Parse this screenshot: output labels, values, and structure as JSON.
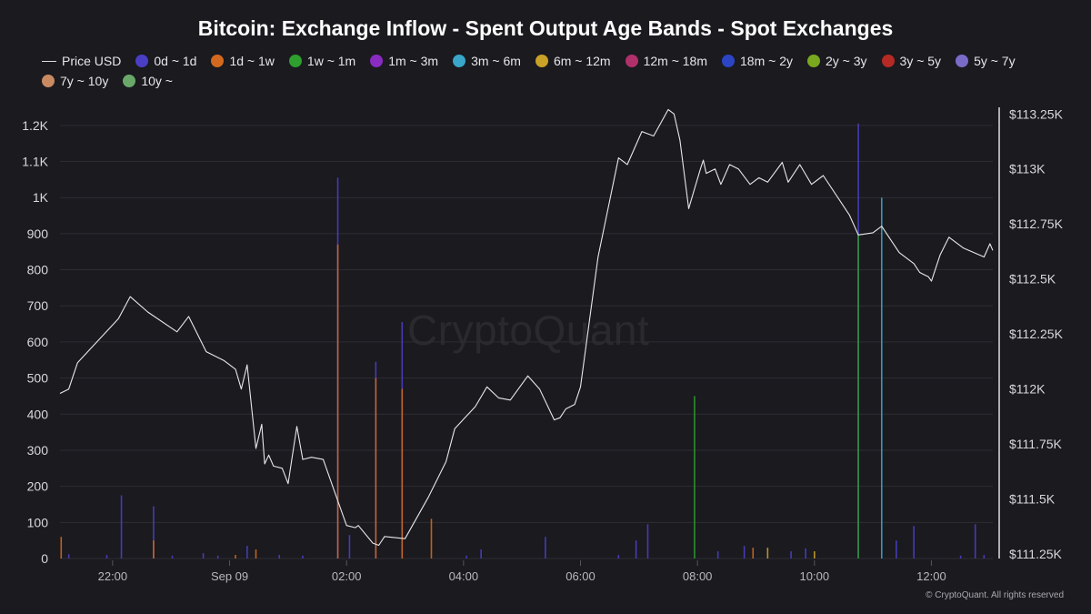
{
  "chart_data": {
    "type": "bar",
    "title": "Bitcoin: Exchange Inflow - Spent Output Age Bands - Spot Exchanges",
    "legend_placement": "top-left",
    "legend": [
      {
        "name": "Price USD",
        "kind": "line",
        "color": "#dcdce0"
      },
      {
        "name": "0d ~ 1d",
        "kind": "dot",
        "color": "#4a3fc4"
      },
      {
        "name": "1d ~ 1w",
        "kind": "dot",
        "color": "#d2691e"
      },
      {
        "name": "1w ~ 1m",
        "kind": "dot",
        "color": "#2e9e2e"
      },
      {
        "name": "1m ~ 3m",
        "kind": "dot",
        "color": "#8a2bc2"
      },
      {
        "name": "3m ~ 6m",
        "kind": "dot",
        "color": "#3aa6c9"
      },
      {
        "name": "6m ~ 12m",
        "kind": "dot",
        "color": "#c9a227"
      },
      {
        "name": "12m ~ 18m",
        "kind": "dot",
        "color": "#b0306a"
      },
      {
        "name": "18m ~ 2y",
        "kind": "dot",
        "color": "#2b45c4"
      },
      {
        "name": "2y ~ 3y",
        "kind": "dot",
        "color": "#7aa81e"
      },
      {
        "name": "3y ~ 5y",
        "kind": "dot",
        "color": "#b52a24"
      },
      {
        "name": "5y ~ 7y",
        "kind": "dot",
        "color": "#7b6bc9"
      },
      {
        "name": "7y ~ 10y",
        "kind": "dot",
        "color": "#c98a62"
      },
      {
        "name": "10y ~",
        "kind": "dot",
        "color": "#6aa86a"
      }
    ],
    "x_ticks": [
      {
        "t": -2.0,
        "label": "22:00"
      },
      {
        "t": 0.0,
        "label": "Sep 09"
      },
      {
        "t": 2.0,
        "label": "02:00"
      },
      {
        "t": 4.0,
        "label": "04:00"
      },
      {
        "t": 6.0,
        "label": "06:00"
      },
      {
        "t": 8.0,
        "label": "08:00"
      },
      {
        "t": 10.0,
        "label": "10:00"
      },
      {
        "t": 12.0,
        "label": "12:00"
      }
    ],
    "x_range": [
      -2.9,
      13.05
    ],
    "left_axis": {
      "ylim": [
        0,
        1250
      ],
      "ticks": [
        {
          "v": 0,
          "label": "0"
        },
        {
          "v": 100,
          "label": "100"
        },
        {
          "v": 200,
          "label": "200"
        },
        {
          "v": 300,
          "label": "300"
        },
        {
          "v": 400,
          "label": "400"
        },
        {
          "v": 500,
          "label": "500"
        },
        {
          "v": 600,
          "label": "600"
        },
        {
          "v": 700,
          "label": "700"
        },
        {
          "v": 800,
          "label": "800"
        },
        {
          "v": 900,
          "label": "900"
        },
        {
          "v": 1000,
          "label": "1K"
        },
        {
          "v": 1100,
          "label": "1.1K"
        },
        {
          "v": 1200,
          "label": "1.2K"
        }
      ]
    },
    "right_axis": {
      "ylim": [
        111230,
        113280
      ],
      "ticks": [
        {
          "v": 111250,
          "label": "$111.25K"
        },
        {
          "v": 111500,
          "label": "$111.5K"
        },
        {
          "v": 111750,
          "label": "$111.75K"
        },
        {
          "v": 112000,
          "label": "$112K"
        },
        {
          "v": 112250,
          "label": "$112.25K"
        },
        {
          "v": 112500,
          "label": "$112.5K"
        },
        {
          "v": 112750,
          "label": "$112.75K"
        },
        {
          "v": 113000,
          "label": "$113K"
        },
        {
          "v": 113250,
          "label": "$113.25K"
        }
      ]
    },
    "inflow_bars": [
      {
        "t": -2.88,
        "band": "1d ~ 1w",
        "value": 60
      },
      {
        "t": -2.75,
        "band": "0d ~ 1d",
        "value": 12
      },
      {
        "t": -2.1,
        "band": "0d ~ 1d",
        "value": 10
      },
      {
        "t": -1.85,
        "band": "0d ~ 1d",
        "value": 175
      },
      {
        "t": -1.3,
        "band": "0d ~ 1d",
        "value": 145
      },
      {
        "t": -1.3,
        "band": "1d ~ 1w",
        "value": 50
      },
      {
        "t": -0.98,
        "band": "0d ~ 1d",
        "value": 8
      },
      {
        "t": -0.45,
        "band": "0d ~ 1d",
        "value": 15
      },
      {
        "t": -0.2,
        "band": "0d ~ 1d",
        "value": 8
      },
      {
        "t": 0.1,
        "band": "1d ~ 1w",
        "value": 10
      },
      {
        "t": 0.3,
        "band": "0d ~ 1d",
        "value": 35
      },
      {
        "t": 0.45,
        "band": "1d ~ 1w",
        "value": 25
      },
      {
        "t": 0.85,
        "band": "0d ~ 1d",
        "value": 10
      },
      {
        "t": 1.25,
        "band": "0d ~ 1d",
        "value": 8
      },
      {
        "t": 1.85,
        "band": "0d ~ 1d",
        "value": 1055
      },
      {
        "t": 1.85,
        "band": "1d ~ 1w",
        "value": 870
      },
      {
        "t": 2.05,
        "band": "0d ~ 1d",
        "value": 65
      },
      {
        "t": 2.5,
        "band": "0d ~ 1d",
        "value": 545
      },
      {
        "t": 2.5,
        "band": "1d ~ 1w",
        "value": 500
      },
      {
        "t": 2.95,
        "band": "0d ~ 1d",
        "value": 655
      },
      {
        "t": 2.95,
        "band": "1d ~ 1w",
        "value": 470
      },
      {
        "t": 3.45,
        "band": "1d ~ 1w",
        "value": 110
      },
      {
        "t": 4.05,
        "band": "0d ~ 1d",
        "value": 8
      },
      {
        "t": 4.3,
        "band": "0d ~ 1d",
        "value": 25
      },
      {
        "t": 5.4,
        "band": "0d ~ 1d",
        "value": 60
      },
      {
        "t": 6.65,
        "band": "0d ~ 1d",
        "value": 10
      },
      {
        "t": 6.95,
        "band": "0d ~ 1d",
        "value": 50
      },
      {
        "t": 7.15,
        "band": "0d ~ 1d",
        "value": 95
      },
      {
        "t": 7.95,
        "band": "1w ~ 1m",
        "value": 450
      },
      {
        "t": 8.35,
        "band": "0d ~ 1d",
        "value": 20
      },
      {
        "t": 8.8,
        "band": "0d ~ 1d",
        "value": 35
      },
      {
        "t": 8.95,
        "band": "1d ~ 1w",
        "value": 30
      },
      {
        "t": 9.2,
        "band": "6m ~ 12m",
        "value": 30
      },
      {
        "t": 9.6,
        "band": "0d ~ 1d",
        "value": 20
      },
      {
        "t": 9.85,
        "band": "0d ~ 1d",
        "value": 28
      },
      {
        "t": 10.0,
        "band": "6m ~ 12m",
        "value": 20
      },
      {
        "t": 10.75,
        "band": "0d ~ 1d",
        "value": 1205
      },
      {
        "t": 10.75,
        "band": "1w ~ 1m",
        "value": 900
      },
      {
        "t": 11.15,
        "band": "3m ~ 6m",
        "value": 1000
      },
      {
        "t": 11.4,
        "band": "0d ~ 1d",
        "value": 50
      },
      {
        "t": 11.7,
        "band": "0d ~ 1d",
        "value": 90
      },
      {
        "t": 12.5,
        "band": "0d ~ 1d",
        "value": 8
      },
      {
        "t": 12.75,
        "band": "0d ~ 1d",
        "value": 95
      },
      {
        "t": 12.9,
        "band": "0d ~ 1d",
        "value": 10
      }
    ],
    "price_series": {
      "name": "Price USD",
      "points": [
        [
          -2.9,
          111980
        ],
        [
          -2.75,
          112000
        ],
        [
          -2.6,
          112120
        ],
        [
          -1.9,
          112320
        ],
        [
          -1.7,
          112420
        ],
        [
          -1.4,
          112350
        ],
        [
          -0.9,
          112260
        ],
        [
          -0.7,
          112330
        ],
        [
          -0.4,
          112170
        ],
        [
          -0.1,
          112130
        ],
        [
          0.1,
          112090
        ],
        [
          0.2,
          112000
        ],
        [
          0.3,
          112110
        ],
        [
          0.45,
          111730
        ],
        [
          0.55,
          111840
        ],
        [
          0.6,
          111660
        ],
        [
          0.67,
          111700
        ],
        [
          0.75,
          111650
        ],
        [
          0.9,
          111640
        ],
        [
          1.0,
          111570
        ],
        [
          1.15,
          111830
        ],
        [
          1.25,
          111680
        ],
        [
          1.4,
          111690
        ],
        [
          1.6,
          111680
        ],
        [
          1.8,
          111530
        ],
        [
          2.0,
          111380
        ],
        [
          2.15,
          111370
        ],
        [
          2.2,
          111380
        ],
        [
          2.45,
          111300
        ],
        [
          2.55,
          111290
        ],
        [
          2.65,
          111330
        ],
        [
          3.0,
          111320
        ],
        [
          3.4,
          111510
        ],
        [
          3.7,
          111670
        ],
        [
          3.85,
          111820
        ],
        [
          4.2,
          111920
        ],
        [
          4.4,
          112010
        ],
        [
          4.6,
          111960
        ],
        [
          4.8,
          111950
        ],
        [
          5.1,
          112060
        ],
        [
          5.3,
          112000
        ],
        [
          5.55,
          111860
        ],
        [
          5.65,
          111870
        ],
        [
          5.75,
          111910
        ],
        [
          5.9,
          111930
        ],
        [
          6.0,
          112010
        ],
        [
          6.3,
          112600
        ],
        [
          6.65,
          113050
        ],
        [
          6.8,
          113020
        ],
        [
          7.05,
          113170
        ],
        [
          7.25,
          113150
        ],
        [
          7.5,
          113270
        ],
        [
          7.6,
          113250
        ],
        [
          7.7,
          113130
        ],
        [
          7.85,
          112820
        ],
        [
          8.05,
          113000
        ],
        [
          8.1,
          113040
        ],
        [
          8.15,
          112980
        ],
        [
          8.3,
          113000
        ],
        [
          8.4,
          112930
        ],
        [
          8.55,
          113020
        ],
        [
          8.7,
          113000
        ],
        [
          8.9,
          112930
        ],
        [
          9.05,
          112960
        ],
        [
          9.2,
          112940
        ],
        [
          9.45,
          113030
        ],
        [
          9.55,
          112940
        ],
        [
          9.75,
          113020
        ],
        [
          9.95,
          112930
        ],
        [
          10.15,
          112970
        ],
        [
          10.6,
          112790
        ],
        [
          10.75,
          112700
        ],
        [
          11.0,
          112710
        ],
        [
          11.15,
          112740
        ],
        [
          11.3,
          112680
        ],
        [
          11.45,
          112620
        ],
        [
          11.7,
          112570
        ],
        [
          11.8,
          112530
        ],
        [
          11.95,
          112510
        ],
        [
          12.0,
          112490
        ],
        [
          12.15,
          112610
        ],
        [
          12.3,
          112690
        ],
        [
          12.55,
          112640
        ],
        [
          12.9,
          112600
        ],
        [
          13.0,
          112660
        ],
        [
          13.05,
          112630
        ]
      ]
    }
  },
  "footer": {
    "watermark": "CryptoQuant",
    "copyright": "© CryptoQuant. All rights reserved"
  }
}
